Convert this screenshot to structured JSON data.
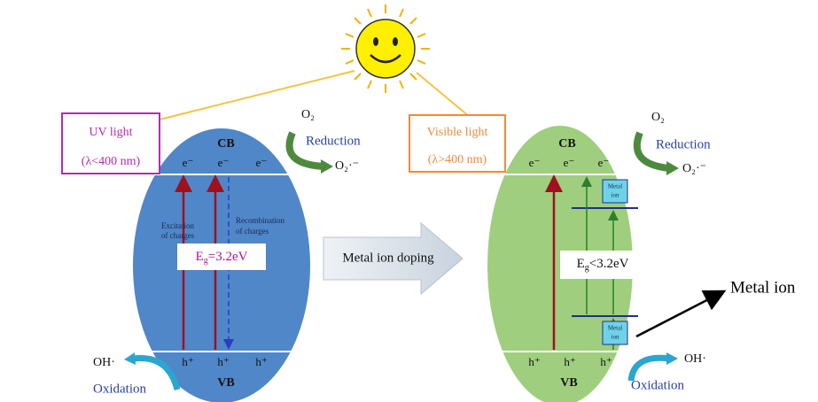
{
  "left_panel": {
    "light_title": "UV light",
    "light_range": "(λ<400 nm)",
    "cb": "CB",
    "vb": "VB",
    "electrons": [
      "e⁻",
      "e⁻",
      "e⁻"
    ],
    "holes": [
      "h⁺",
      "h⁺",
      "h⁺"
    ],
    "excitation": [
      "Excitation",
      "of charges"
    ],
    "recombination": [
      "Recombination",
      "of charges"
    ],
    "gap_symbol": "E",
    "gap_sub": "g",
    "gap_value": "=3.2eV",
    "reduction_in": "O₂",
    "reduction": "Reduction",
    "reduction_out": "O₂·⁻",
    "oxidation_in": "OH·",
    "oxidation": "Oxidation"
  },
  "center": {
    "process": "Metal ion doping"
  },
  "right_panel": {
    "light_title": "Visible light",
    "light_range": "(λ>400 nm)",
    "cb": "CB",
    "vb": "VB",
    "electrons": [
      "e⁻",
      "e⁻",
      "e⁻"
    ],
    "holes": [
      "h⁺",
      "h⁺",
      "h⁺"
    ],
    "gap_symbol": "E",
    "gap_sub": "g",
    "gap_value": "<3.2eV",
    "level_labels": [
      [
        "Metal",
        "ion"
      ],
      [
        "Metal",
        "ion"
      ]
    ],
    "reduction_in": "O₂",
    "reduction": "Reduction",
    "reduction_out": "O₂·⁻",
    "oxidation_in": "OH·",
    "oxidation": "Oxidation"
  },
  "callout": "Metal ion"
}
